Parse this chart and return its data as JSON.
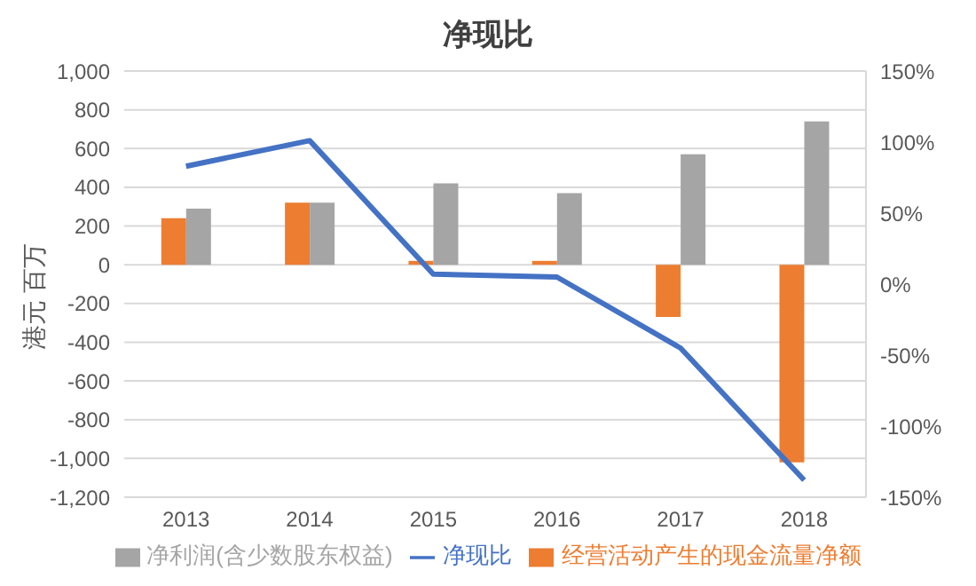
{
  "chart_data": {
    "type": "bar",
    "title": "净现比",
    "ylabel": "港元 百万",
    "categories": [
      "2013",
      "2014",
      "2015",
      "2016",
      "2017",
      "2018"
    ],
    "series": [
      {
        "name": "经营活动产生的现金流量净额",
        "color": "#ed7d31",
        "values": [
          240,
          320,
          20,
          20,
          -270,
          -1020
        ]
      },
      {
        "name": "净利润(含少数股东权益)",
        "color": "#a5a5a5",
        "values": [
          290,
          320,
          420,
          370,
          570,
          740
        ]
      },
      {
        "name": "净现比",
        "type": "line",
        "axis": "y2",
        "color": "#4472c4",
        "values": [
          83,
          101,
          7,
          5,
          -45,
          -138
        ]
      }
    ],
    "ylim": [
      -1200,
      1000
    ],
    "yticks": [
      {
        "value": -1200,
        "label": "-1,200"
      },
      {
        "value": -1000,
        "label": "-1,000"
      },
      -800,
      -600,
      -400,
      -200,
      0,
      200,
      400,
      600,
      800,
      {
        "value": 1000,
        "label": "1,000"
      }
    ],
    "y2lim": [
      -150,
      150
    ],
    "y2ticks": [
      {
        "value": -150,
        "label": "-150%"
      },
      {
        "value": -100,
        "label": "-100%"
      },
      {
        "value": -50,
        "label": "-50%"
      },
      {
        "value": 0,
        "label": "0%"
      },
      {
        "value": 50,
        "label": "50%"
      },
      {
        "value": 100,
        "label": "100%"
      },
      {
        "value": 150,
        "label": "150%"
      }
    ],
    "grid": "y",
    "legend": "bottom",
    "marker": "none"
  }
}
